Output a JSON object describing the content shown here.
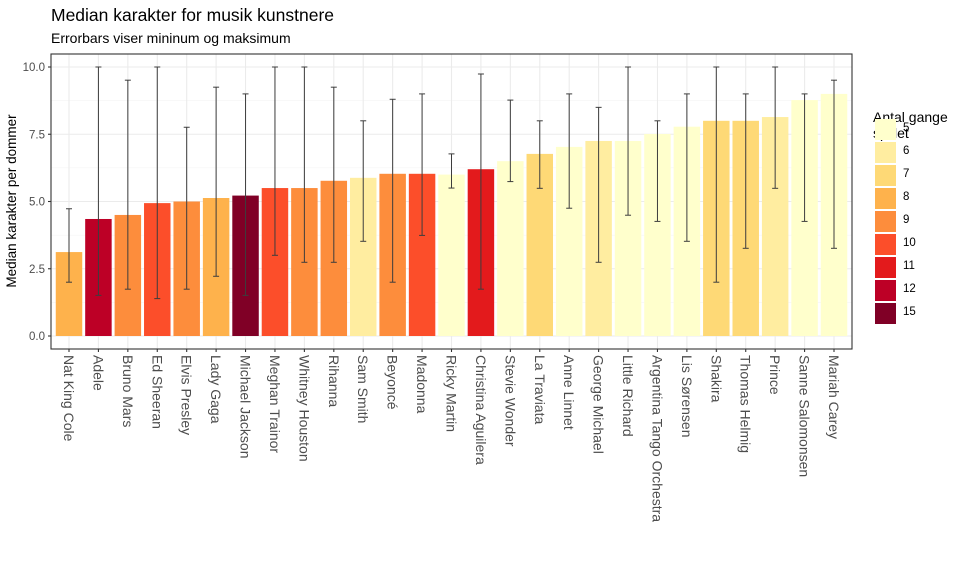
{
  "chart_data": {
    "type": "bar",
    "title": "Median karakter for musik kunstnere",
    "subtitle": "Errorbars viser mininum og maksimum",
    "xlabel": "",
    "ylabel": "Median karakter per dommer",
    "ylim": [
      0,
      10
    ],
    "yticks": [
      0.0,
      2.5,
      5.0,
      7.5,
      10.0
    ],
    "ytick_labels": [
      "0.0",
      "2.5",
      "5.0",
      "7.5",
      "10.0"
    ],
    "grid": true,
    "legend": {
      "title": "Antal gange spillet",
      "title_lines": [
        "Antal gange",
        "spillet"
      ],
      "position": "right",
      "entries": [
        {
          "label": "5",
          "color": "#FFFFCC"
        },
        {
          "label": "6",
          "color": "#FFEDA0"
        },
        {
          "label": "7",
          "color": "#FED976"
        },
        {
          "label": "8",
          "color": "#FEB24C"
        },
        {
          "label": "9",
          "color": "#FD8D3C"
        },
        {
          "label": "10",
          "color": "#FC4E2A"
        },
        {
          "label": "11",
          "color": "#E31A1C"
        },
        {
          "label": "12",
          "color": "#BD0026"
        },
        {
          "label": "15",
          "color": "#800026"
        }
      ]
    },
    "categories": [
      "Nat King Cole",
      "Adele",
      "Bruno Mars",
      "Ed Sheeran",
      "Elvis Presley",
      "Lady Gaga",
      "Michael Jackson",
      "Meghan Trainor",
      "Whitney Houston",
      "Rihanna",
      "Sam Smith",
      "Beyoncé",
      "Madonna",
      "Ricky Martin",
      "Christina Aguilera",
      "Stevie Wonder",
      "La Traviata",
      "Anne Linnet",
      "George Michael",
      "Little Richard",
      "Argentina Tango Orchestra",
      "Lis Sørensen",
      "Shakira",
      "Thomas Helmig",
      "Prince",
      "Sanne Salomonsen",
      "Mariah Carey"
    ],
    "series": [
      {
        "name": "median",
        "values": [
          3.12,
          4.35,
          4.5,
          4.94,
          5.0,
          5.13,
          5.22,
          5.5,
          5.5,
          5.77,
          5.88,
          6.03,
          6.03,
          6.0,
          6.2,
          6.5,
          6.77,
          7.03,
          7.25,
          7.25,
          7.51,
          7.78,
          8.0,
          8.0,
          8.14,
          8.77,
          9.0
        ]
      },
      {
        "name": "min",
        "values": [
          2.0,
          1.51,
          1.74,
          1.39,
          1.74,
          2.22,
          1.51,
          3.0,
          2.74,
          2.74,
          3.52,
          2.0,
          3.74,
          5.5,
          1.74,
          5.74,
          5.49,
          4.75,
          2.74,
          4.49,
          4.26,
          3.52,
          2.0,
          3.26,
          5.49,
          4.26,
          3.26
        ]
      },
      {
        "name": "max",
        "values": [
          4.73,
          10.0,
          9.51,
          10.0,
          7.76,
          9.25,
          9.0,
          10.0,
          10.0,
          9.25,
          8.0,
          8.8,
          9.0,
          6.77,
          9.74,
          8.77,
          8.0,
          9.0,
          8.5,
          10.0,
          8.0,
          9.0,
          10.0,
          9.0,
          10.0,
          9.0,
          9.51
        ]
      },
      {
        "name": "antal_gange_spillet",
        "values": [
          "8",
          "12",
          "9",
          "10",
          "9",
          "8",
          "15",
          "10",
          "9",
          "9",
          "6",
          "9",
          "10",
          "5",
          "11",
          "5",
          "7",
          "5",
          "6",
          "5",
          "5",
          "5",
          "7",
          "7",
          "6",
          "5",
          "5"
        ]
      }
    ]
  }
}
